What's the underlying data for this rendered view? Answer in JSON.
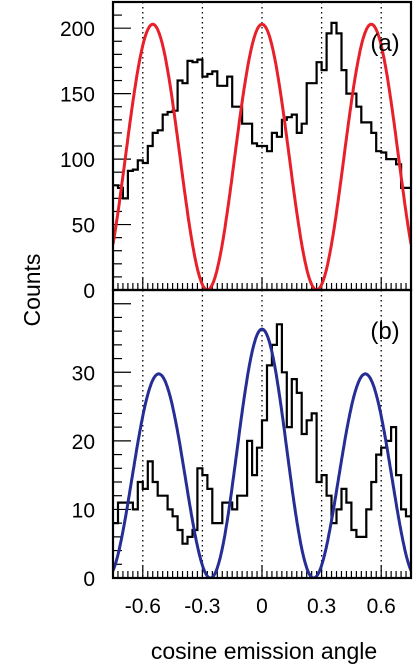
{
  "chart_data": [
    {
      "type": "line",
      "panel_label": "(a)",
      "xlim": [
        -0.75,
        0.75
      ],
      "ylim": [
        0,
        220
      ],
      "xticks": [
        -0.6,
        -0.3,
        0,
        0.3,
        0.6
      ],
      "yticks": [
        0,
        50,
        100,
        150,
        200
      ],
      "ytick_labels": [
        "0",
        "50",
        "100",
        "150",
        "200"
      ],
      "grid": "vertical dotted at x ticks",
      "series": [
        {
          "kind": "histogram",
          "color": "#000000",
          "bin_width": 0.025,
          "x_start": -0.75,
          "values": [
            80,
            78,
            70,
            91,
            92,
            99,
            97,
            110,
            120,
            122,
            134,
            136,
            137,
            160,
            158,
            175,
            174,
            176,
            163,
            165,
            167,
            156,
            156,
            163,
            140,
            140,
            127,
            127,
            112,
            110,
            110,
            106,
            120,
            117,
            130,
            132,
            134,
            120,
            127,
            158,
            158,
            174,
            168,
            196,
            204,
            196,
            168,
            150,
            150,
            140,
            128,
            128,
            120,
            106,
            105,
            100,
            100,
            96,
            78,
            78
          ]
        },
        {
          "kind": "curve",
          "color": "#e8202a",
          "formula": "A*cos^2(pi*x/0.55)",
          "amplitude": 203,
          "period": 0.55
        }
      ]
    },
    {
      "type": "line",
      "panel_label": "(b)",
      "xlim": [
        -0.75,
        0.75
      ],
      "ylim": [
        0,
        42
      ],
      "xticks": [
        -0.6,
        -0.3,
        0,
        0.3,
        0.6
      ],
      "xtick_labels": [
        "-0.6",
        "-0.3",
        "0",
        "0.3",
        "0.6"
      ],
      "yticks": [
        0,
        10,
        20,
        30
      ],
      "ytick_labels": [
        "0",
        "10",
        "20",
        "30"
      ],
      "grid": "vertical dotted at x ticks",
      "series": [
        {
          "kind": "histogram",
          "color": "#000000",
          "bin_width": 0.025,
          "x_start": -0.75,
          "values": [
            8,
            11,
            11,
            11,
            10,
            14,
            13,
            17,
            14,
            12,
            12,
            10,
            9,
            7,
            5,
            6,
            7,
            16,
            15,
            13,
            8,
            8,
            11,
            11,
            10,
            12,
            12,
            20,
            15,
            19,
            23,
            31,
            34,
            37,
            30,
            22,
            29,
            27,
            21,
            23,
            24,
            14,
            15,
            12,
            8,
            10,
            13,
            11,
            7,
            6,
            6,
            10,
            14,
            18,
            19,
            20,
            22,
            15,
            10,
            9
          ]
        },
        {
          "kind": "curve",
          "color": "#262d94",
          "formula": "A*cos^2(pi*x/0.52) + B*cos(2*pi*x/0.52)",
          "amplitude": 31.5,
          "modulation": 4.8,
          "period": 0.52
        }
      ]
    }
  ],
  "ylabel": "Counts",
  "xlabel": "cosine emission angle"
}
